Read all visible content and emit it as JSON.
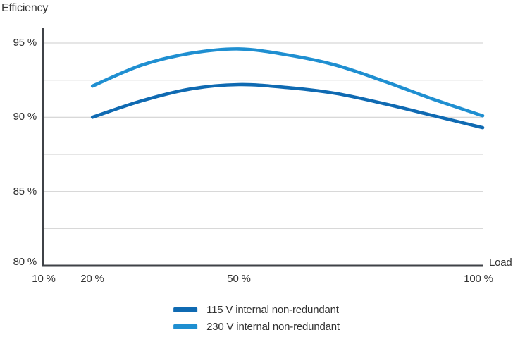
{
  "chart_data": {
    "type": "line",
    "title": "Efficiency",
    "xlabel": "Load",
    "ylabel": "Efficiency",
    "x_unit": "%",
    "y_unit": "%",
    "x": [
      20,
      30,
      40,
      50,
      60,
      70,
      80,
      90,
      100
    ],
    "series": [
      {
        "name": "115 V internal non-redundant",
        "color": "#0f6ab2",
        "values": [
          90.0,
          91.1,
          91.9,
          92.2,
          92.0,
          91.6,
          90.9,
          90.1,
          89.3
        ]
      },
      {
        "name": "230 V internal non-redundant",
        "color": "#1f8fd1",
        "values": [
          92.1,
          93.5,
          94.3,
          94.6,
          94.2,
          93.5,
          92.4,
          91.2,
          90.1
        ]
      }
    ],
    "xlim": [
      10,
      100
    ],
    "ylim": [
      80,
      96
    ],
    "grid": true,
    "y_gridlines": [
      95,
      92.5,
      90,
      87.5,
      85,
      82.5
    ],
    "y_ticks": [
      95,
      90,
      85,
      80
    ],
    "y_tick_labels": [
      "95 %",
      "90 %",
      "85 %",
      "80 %"
    ],
    "x_ticks": [
      10,
      20,
      50,
      100
    ],
    "x_tick_labels": [
      "10 %",
      "20 %",
      "50 %",
      "100 %"
    ],
    "legend_position": "bottom-center"
  },
  "colors": {
    "axis": "#3f4247",
    "grid": "#cccccc",
    "text": "#333333",
    "series_115v": "#0f6ab2",
    "series_230v": "#1f8fd1"
  },
  "legend": {
    "items": [
      {
        "label": "115 V internal non-redundant"
      },
      {
        "label": "230 V internal non-redundant"
      }
    ]
  }
}
